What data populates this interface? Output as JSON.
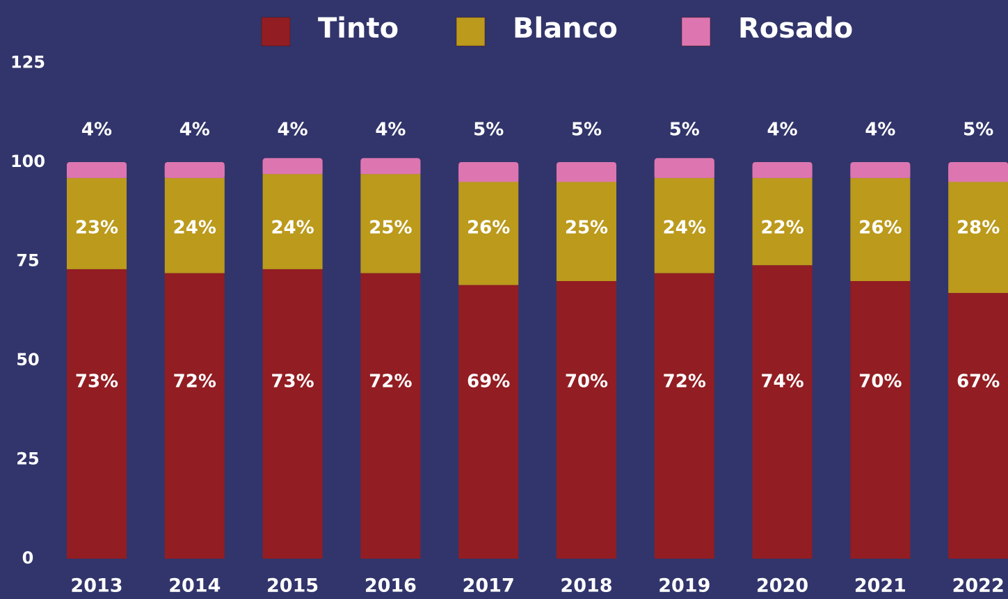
{
  "chart_data": {
    "type": "stacked_bar",
    "categories": [
      "2013",
      "2014",
      "2015",
      "2016",
      "2017",
      "2018",
      "2019",
      "2020",
      "2021",
      "2022"
    ],
    "series": [
      {
        "name": "Tinto",
        "color": "#921d22",
        "values": [
          73,
          72,
          73,
          72,
          69,
          70,
          72,
          74,
          70,
          67
        ],
        "value_labels": [
          "73%",
          "72%",
          "73%",
          "72%",
          "69%",
          "70%",
          "72%",
          "74%",
          "70%",
          "67%"
        ]
      },
      {
        "name": "Blanco",
        "color": "#bb9a1c",
        "values": [
          23,
          24,
          24,
          25,
          26,
          25,
          24,
          22,
          26,
          28
        ],
        "value_labels": [
          "23%",
          "24%",
          "24%",
          "25%",
          "26%",
          "25%",
          "24%",
          "22%",
          "26%",
          "28%"
        ]
      },
      {
        "name": "Rosado",
        "color": "#dd76b0",
        "values": [
          4,
          4,
          4,
          4,
          5,
          5,
          5,
          4,
          4,
          5
        ],
        "value_labels": [
          "4%",
          "4%",
          "4%",
          "4%",
          "5%",
          "5%",
          "5%",
          "4%",
          "4%",
          "5%"
        ]
      }
    ],
    "ylim": [
      0,
      125
    ],
    "yticks": [
      0,
      25,
      50,
      75,
      100,
      125
    ],
    "grid": false,
    "legend": "top"
  }
}
